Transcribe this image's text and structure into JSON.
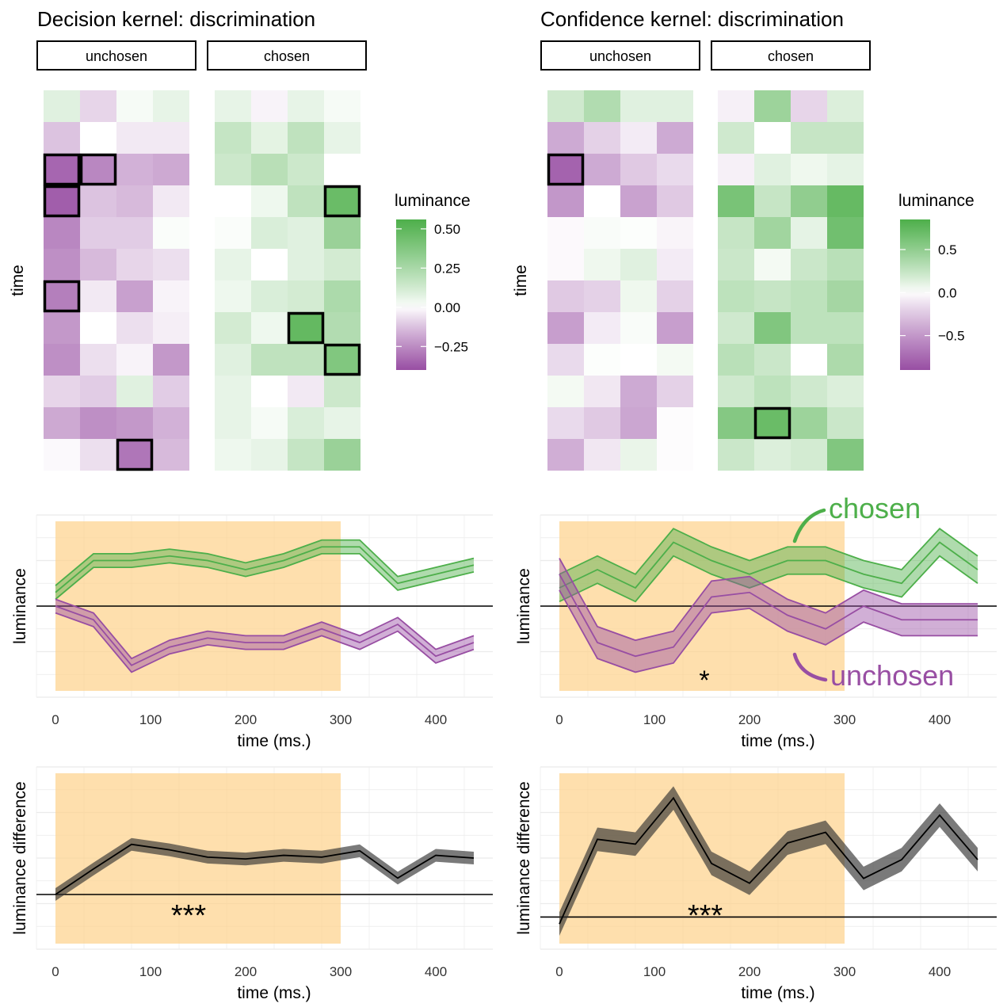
{
  "chart_data": [
    {
      "id": "decision-heatmap",
      "type": "heatmap",
      "title": "Decision kernel: discrimination",
      "ylabel": "time",
      "facets": [
        "unchosen",
        "chosen"
      ],
      "legend": {
        "title": "luminance",
        "ticks": [
          0.5,
          0.25,
          0.0,
          -0.25
        ],
        "tick_labels": [
          "0.50",
          "0.25",
          "0.00",
          "−0.25"
        ],
        "range": [
          -0.4,
          0.56
        ]
      },
      "values": {
        "unchosen": [
          [
            0.08,
            -0.08,
            0.02,
            0.06
          ],
          [
            -0.12,
            0.0,
            -0.04,
            -0.04
          ],
          [
            -0.34,
            -0.26,
            -0.16,
            -0.18
          ],
          [
            -0.36,
            -0.12,
            -0.14,
            -0.04
          ],
          [
            -0.26,
            -0.1,
            -0.1,
            0.01
          ],
          [
            -0.24,
            -0.14,
            -0.08,
            -0.06
          ],
          [
            -0.28,
            -0.04,
            -0.2,
            -0.02
          ],
          [
            -0.22,
            0.0,
            -0.06,
            -0.03
          ],
          [
            -0.24,
            -0.06,
            -0.02,
            -0.22
          ],
          [
            -0.08,
            -0.1,
            0.08,
            -0.1
          ],
          [
            -0.18,
            -0.24,
            -0.22,
            -0.16
          ],
          [
            -0.01,
            -0.06,
            -0.3,
            -0.14
          ]
        ],
        "chosen": [
          [
            0.06,
            -0.02,
            0.06,
            0.02
          ],
          [
            0.16,
            0.07,
            0.18,
            0.06
          ],
          [
            0.14,
            0.2,
            0.14,
            0.0
          ],
          [
            0.0,
            0.04,
            0.18,
            0.46
          ],
          [
            0.01,
            0.1,
            0.08,
            0.3
          ],
          [
            0.06,
            0.0,
            0.08,
            0.12
          ],
          [
            0.04,
            0.1,
            0.12,
            0.24
          ],
          [
            0.12,
            0.04,
            0.48,
            0.22
          ],
          [
            0.08,
            0.18,
            0.18,
            0.38
          ],
          [
            0.06,
            0.0,
            -0.04,
            0.14
          ],
          [
            0.06,
            0.02,
            0.1,
            0.06
          ],
          [
            0.04,
            0.06,
            0.16,
            0.3
          ]
        ]
      },
      "highlighted_cells": {
        "unchosen": [
          [
            2,
            0
          ],
          [
            2,
            1
          ],
          [
            3,
            0
          ],
          [
            6,
            0
          ],
          [
            11,
            2
          ]
        ],
        "chosen": [
          [
            3,
            3
          ],
          [
            7,
            2
          ],
          [
            8,
            3
          ]
        ]
      }
    },
    {
      "id": "confidence-heatmap",
      "type": "heatmap",
      "title": "Confidence kernel: discrimination",
      "ylabel": "time",
      "facets": [
        "unchosen",
        "chosen"
      ],
      "legend": {
        "title": "luminance",
        "ticks": [
          0.5,
          0.0,
          -0.5
        ],
        "tick_labels": [
          "0.5",
          "0.0",
          "−0.5"
        ],
        "range": [
          -0.9,
          0.85
        ]
      },
      "values": {
        "unchosen": [
          [
            0.2,
            0.34,
            0.12,
            0.12
          ],
          [
            -0.4,
            -0.2,
            -0.08,
            -0.4
          ],
          [
            -0.78,
            -0.4,
            -0.24,
            -0.16
          ],
          [
            -0.5,
            0.0,
            -0.44,
            -0.24
          ],
          [
            -0.02,
            0.02,
            0.01,
            -0.04
          ],
          [
            -0.02,
            0.06,
            0.12,
            -0.08
          ],
          [
            -0.24,
            -0.2,
            0.06,
            -0.2
          ],
          [
            -0.46,
            -0.08,
            0.02,
            -0.46
          ],
          [
            -0.16,
            0.01,
            0.0,
            0.04
          ],
          [
            0.04,
            -0.1,
            -0.4,
            -0.2
          ],
          [
            -0.16,
            -0.24,
            -0.42,
            -0.01
          ],
          [
            -0.38,
            -0.1,
            0.08,
            -0.01
          ]
        ],
        "chosen": [
          [
            -0.06,
            0.44,
            -0.18,
            0.14
          ],
          [
            0.2,
            0.0,
            0.24,
            0.24
          ],
          [
            -0.06,
            0.12,
            0.06,
            0.1
          ],
          [
            0.62,
            0.24,
            0.5,
            0.72
          ],
          [
            0.24,
            0.42,
            0.1,
            0.66
          ],
          [
            0.22,
            0.04,
            0.22,
            0.3
          ],
          [
            0.28,
            0.24,
            0.28,
            0.4
          ],
          [
            0.2,
            0.58,
            0.28,
            0.28
          ],
          [
            0.3,
            0.22,
            0.0,
            0.36
          ],
          [
            0.2,
            0.28,
            0.2,
            0.14
          ],
          [
            0.56,
            0.7,
            0.44,
            0.22
          ],
          [
            0.22,
            0.14,
            0.18,
            0.58
          ]
        ]
      },
      "highlighted_cells": {
        "unchosen": [
          [
            2,
            0
          ]
        ],
        "chosen": [
          [
            10,
            1
          ]
        ]
      }
    },
    {
      "id": "decision-lines",
      "type": "line",
      "xlabel": "time (ms.)",
      "ylabel": "luminance",
      "xlim": [
        -20,
        460
      ],
      "ylim": [
        -0.2,
        0.2
      ],
      "x_ticks": [
        0,
        100,
        200,
        300,
        400
      ],
      "highlight_interval": [
        0,
        300
      ],
      "x": [
        0,
        40,
        80,
        120,
        160,
        200,
        240,
        280,
        320,
        360,
        400,
        440
      ],
      "series": [
        {
          "name": "chosen",
          "color": "#4DAF4A",
          "values": [
            0.03,
            0.1,
            0.1,
            0.11,
            0.1,
            0.08,
            0.1,
            0.13,
            0.13,
            0.05,
            0.07,
            0.09
          ],
          "se": [
            0.015,
            0.015,
            0.015,
            0.015,
            0.015,
            0.015,
            0.015,
            0.015,
            0.015,
            0.015,
            0.015,
            0.015
          ]
        },
        {
          "name": "unchosen",
          "color": "#984EA3",
          "values": [
            0.0,
            -0.03,
            -0.13,
            -0.09,
            -0.07,
            -0.08,
            -0.08,
            -0.05,
            -0.08,
            -0.04,
            -0.11,
            -0.08
          ],
          "se": [
            0.015,
            0.015,
            0.015,
            0.015,
            0.015,
            0.015,
            0.015,
            0.015,
            0.015,
            0.015,
            0.015,
            0.015
          ]
        }
      ],
      "annotations": []
    },
    {
      "id": "confidence-lines",
      "type": "line",
      "xlabel": "time (ms.)",
      "ylabel": "luminance",
      "xlim": [
        -20,
        460
      ],
      "ylim": [
        -0.2,
        0.2
      ],
      "x_ticks": [
        0,
        100,
        200,
        300,
        400
      ],
      "highlight_interval": [
        0,
        300
      ],
      "x": [
        0,
        40,
        80,
        120,
        160,
        200,
        240,
        280,
        320,
        360,
        400,
        440
      ],
      "series": [
        {
          "name": "chosen",
          "color": "#4DAF4A",
          "values": [
            0.04,
            0.08,
            0.04,
            0.14,
            0.1,
            0.07,
            0.1,
            0.1,
            0.07,
            0.05,
            0.14,
            0.08
          ],
          "se": [
            0.03,
            0.03,
            0.03,
            0.03,
            0.03,
            0.03,
            0.03,
            0.03,
            0.03,
            0.03,
            0.03,
            0.03
          ]
        },
        {
          "name": "unchosen",
          "color": "#984EA3",
          "values": [
            0.07,
            -0.08,
            -0.11,
            -0.09,
            0.02,
            0.03,
            -0.02,
            -0.05,
            0.0,
            -0.03,
            -0.03,
            -0.03
          ],
          "se": [
            0.035,
            0.035,
            0.035,
            0.035,
            0.035,
            0.035,
            0.035,
            0.035,
            0.035,
            0.035,
            0.035,
            0.035
          ]
        }
      ],
      "annotations": [
        "*"
      ],
      "series_labels": [
        "chosen",
        "unchosen"
      ]
    },
    {
      "id": "decision-diff",
      "type": "line",
      "xlabel": "time (ms.)",
      "ylabel": "luminance difference",
      "xlim": [
        -20,
        460
      ],
      "ylim": [
        -0.06,
        0.14
      ],
      "x_ticks": [
        0,
        100,
        200,
        300,
        400
      ],
      "highlight_interval": [
        0,
        300
      ],
      "x": [
        0,
        40,
        80,
        120,
        160,
        200,
        240,
        280,
        320,
        360,
        400,
        440
      ],
      "series": [
        {
          "name": "difference",
          "color": "#000000",
          "values": [
            0.0,
            0.028,
            0.055,
            0.049,
            0.041,
            0.039,
            0.043,
            0.041,
            0.048,
            0.018,
            0.043,
            0.04
          ],
          "se": [
            0.007,
            0.007,
            0.007,
            0.007,
            0.007,
            0.007,
            0.007,
            0.007,
            0.007,
            0.007,
            0.007,
            0.007
          ]
        }
      ],
      "annotations": [
        "***"
      ]
    },
    {
      "id": "confidence-diff",
      "type": "line",
      "xlabel": "time (ms.)",
      "ylabel": "luminance difference",
      "xlim": [
        -20,
        460
      ],
      "ylim": [
        -0.06,
        0.28
      ],
      "x_ticks": [
        0,
        100,
        200,
        300,
        400
      ],
      "highlight_interval": [
        0,
        300
      ],
      "x": [
        0,
        40,
        80,
        120,
        160,
        200,
        240,
        280,
        320,
        360,
        400,
        440
      ],
      "series": [
        {
          "name": "difference",
          "color": "#000000",
          "values": [
            -0.013,
            0.145,
            0.136,
            0.222,
            0.1,
            0.063,
            0.138,
            0.158,
            0.072,
            0.107,
            0.19,
            0.107
          ],
          "se": [
            0.022,
            0.022,
            0.022,
            0.022,
            0.022,
            0.022,
            0.022,
            0.022,
            0.022,
            0.022,
            0.022,
            0.022
          ]
        }
      ],
      "annotations": [
        "***"
      ]
    }
  ]
}
